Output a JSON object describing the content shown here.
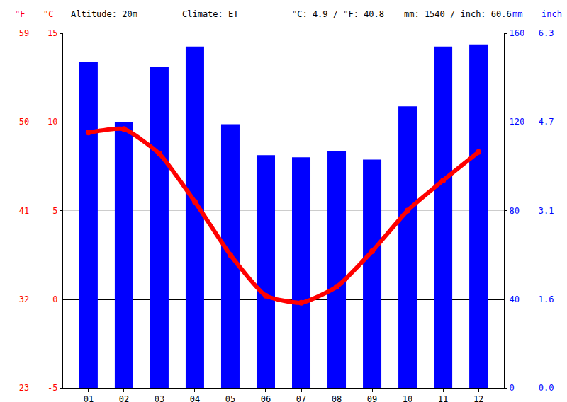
{
  "chart_data": {
    "type": "bar",
    "annotations": [
      "Altitude: 20m",
      "Climate: ET",
      "°C: 4.9 / °F: 40.8",
      "mm: 1540 / inch: 60.6"
    ],
    "categories": [
      "01",
      "02",
      "03",
      "04",
      "05",
      "06",
      "07",
      "08",
      "09",
      "10",
      "11",
      "12"
    ],
    "series": [
      {
        "name": "mm",
        "type": "bar",
        "color": "#0000ff",
        "axis": "y2",
        "values": [
          147,
          120,
          145,
          154,
          119,
          105,
          104,
          107,
          103,
          127,
          154,
          155
        ]
      },
      {
        "name": "°C",
        "type": "line",
        "color": "#ff0000",
        "marker": "circle",
        "values": [
          9.4,
          9.6,
          8.2,
          5.5,
          2.5,
          0.2,
          -0.2,
          0.7,
          2.7,
          5.0,
          6.7,
          8.3
        ]
      }
    ],
    "y_label": "°C",
    "ylim": [
      -5,
      15
    ],
    "yticks": [
      -5,
      0,
      5,
      10,
      15
    ],
    "y2_label": "mm",
    "y2lim": [
      0,
      160
    ],
    "y2ticks": [
      0,
      40,
      80,
      120,
      160
    ],
    "y3_label": "°F",
    "y3lim": [
      23,
      59
    ],
    "y3ticks": [
      23,
      32,
      41,
      50,
      59
    ],
    "y4_label": "inch",
    "y4lim": [
      0,
      6.299
    ],
    "y4ticks": [
      {
        "value": 0,
        "label": "0.0"
      },
      {
        "value": 1.575,
        "label": "1.6"
      },
      {
        "value": 3.15,
        "label": "3.1"
      },
      {
        "value": 4.724,
        "label": "4.7"
      },
      {
        "value": 6.299,
        "label": "6.3"
      }
    ],
    "grid": true
  }
}
